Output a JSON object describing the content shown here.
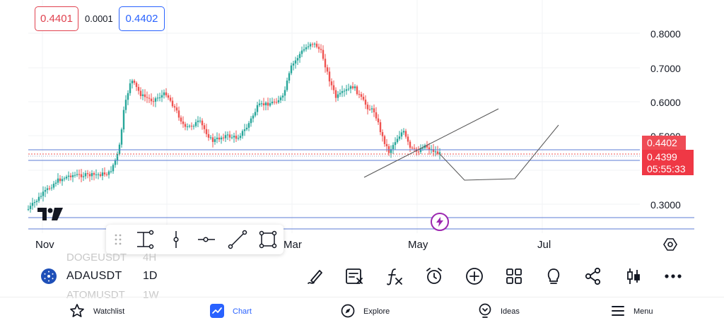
{
  "quote": {
    "bid": "0.4401",
    "spread": "0.0001",
    "ask": "0.4402"
  },
  "price_axis": {
    "labels": [
      "0.8000",
      "0.7000",
      "0.6000",
      "0.5000",
      "0.3000"
    ],
    "tag_ask": "0.4402",
    "tag_last": "0.4399",
    "tag_countdown": "05:55:33"
  },
  "time_axis": {
    "labels": [
      "Nov",
      "Mar",
      "May",
      "Jul"
    ]
  },
  "symbol": {
    "name": "ADAUSDT",
    "timeframe": "1D",
    "prev_name": "DOGEUSDT",
    "prev_tf": "4H",
    "next_name": "ATOMUSDT",
    "next_tf": "1W"
  },
  "actions": [
    "pen-icon",
    "alert-list-icon",
    "fx-icon",
    "alarm-clock-icon",
    "plus-circle-icon",
    "layouts-icon",
    "idea-bulb-icon",
    "share-icon",
    "candle-style-icon",
    "more-icon"
  ],
  "tabs": [
    {
      "label": "Watchlist",
      "icon": "star-icon"
    },
    {
      "label": "Chart",
      "icon": "chart-icon"
    },
    {
      "label": "Explore",
      "icon": "compass-icon"
    },
    {
      "label": "Ideas",
      "icon": "bulb-icon"
    },
    {
      "label": "Menu",
      "icon": "menu-icon"
    }
  ],
  "colors": {
    "up": "#26a69a",
    "down": "#ef5350",
    "accent": "#2962ff",
    "line": "#5b7bd5"
  }
}
